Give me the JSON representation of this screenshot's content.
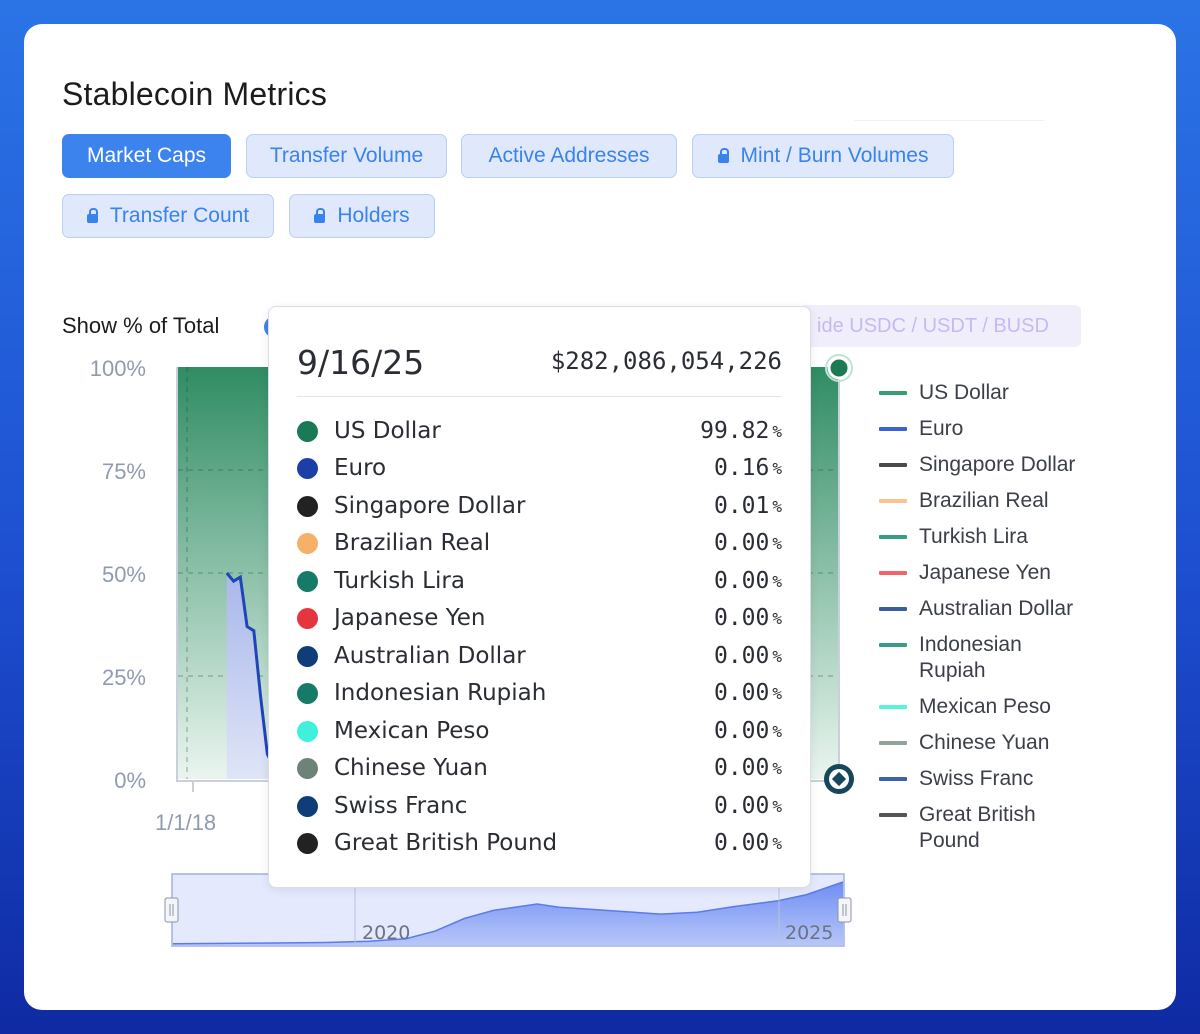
{
  "title": "Stablecoin Metrics",
  "tabs": [
    {
      "label": "Market Caps",
      "active": true,
      "locked": false
    },
    {
      "label": "Transfer Volume",
      "active": false,
      "locked": false
    },
    {
      "label": "Active Addresses",
      "active": false,
      "locked": false
    },
    {
      "label": "Mint / Burn Volumes",
      "active": false,
      "locked": true
    },
    {
      "label": "Transfer Count",
      "active": false,
      "locked": true
    },
    {
      "label": "Holders",
      "active": false,
      "locked": true
    }
  ],
  "controls": {
    "show_pct_label": "Show % of Total",
    "hide_label": "ide USDC / USDT / BUSD"
  },
  "colors": {
    "accent": "#3c83ee",
    "usd_area": "#2f8c63",
    "euro_line": "#1f45b8"
  },
  "chart_data": {
    "type": "area",
    "mode": "percent_of_total",
    "y_ticks": [
      "100%",
      "75%",
      "50%",
      "25%",
      "0%"
    ],
    "ylim": [
      0,
      100
    ],
    "x_ticks": [
      "1/1/18"
    ],
    "euro_share_series": [
      {
        "x": "2018-06",
        "y": 50
      },
      {
        "x": "2018-07",
        "y": 48
      },
      {
        "x": "2018-08",
        "y": 49
      },
      {
        "x": "2018-09",
        "y": 37
      },
      {
        "x": "2018-10",
        "y": 36
      },
      {
        "x": "2018-11",
        "y": 20
      },
      {
        "x": "2018-12",
        "y": 6
      },
      {
        "x": "2019-01",
        "y": 3
      },
      {
        "x": "2019-02",
        "y": 2
      },
      {
        "x": "2019-03",
        "y": 4
      }
    ],
    "tooltip": {
      "date": "9/16/25",
      "total": "$282,086,054,226",
      "rows": [
        {
          "name": "US Dollar",
          "value": "99.82",
          "unit": "%",
          "color": "#1a7a56"
        },
        {
          "name": "Euro",
          "value": "0.16",
          "unit": "%",
          "color": "#1b3fa6"
        },
        {
          "name": "Singapore Dollar",
          "value": "0.01",
          "unit": "%",
          "color": "#222222"
        },
        {
          "name": "Brazilian Real",
          "value": "0.00",
          "unit": "%",
          "color": "#f7b06a"
        },
        {
          "name": "Turkish Lira",
          "value": "0.00",
          "unit": "%",
          "color": "#177a68"
        },
        {
          "name": "Japanese Yen",
          "value": "0.00",
          "unit": "%",
          "color": "#e5363f"
        },
        {
          "name": "Australian Dollar",
          "value": "0.00",
          "unit": "%",
          "color": "#0f3d78"
        },
        {
          "name": "Indonesian Rupiah",
          "value": "0.00",
          "unit": "%",
          "color": "#177a68"
        },
        {
          "name": "Mexican Peso",
          "value": "0.00",
          "unit": "%",
          "color": "#3ff0dc"
        },
        {
          "name": "Chinese Yuan",
          "value": "0.00",
          "unit": "%",
          "color": "#6e8378"
        },
        {
          "name": "Swiss Franc",
          "value": "0.00",
          "unit": "%",
          "color": "#0f3d78"
        },
        {
          "name": "Great British Pound",
          "value": "0.00",
          "unit": "%",
          "color": "#222222"
        }
      ]
    },
    "legend": [
      {
        "label": "US Dollar",
        "color": "#3a9c73"
      },
      {
        "label": "Euro",
        "color": "#3b62d6"
      },
      {
        "label": "Singapore Dollar",
        "color": "#4a4a4a"
      },
      {
        "label": "Brazilian Real",
        "color": "#f9c48e"
      },
      {
        "label": "Turkish Lira",
        "color": "#3a9c86"
      },
      {
        "label": "Japanese Yen",
        "color": "#f0646a"
      },
      {
        "label": "Australian Dollar",
        "color": "#3c5f9c"
      },
      {
        "label": "Indonesian Rupiah",
        "color": "#3a9c86"
      },
      {
        "label": "Mexican Peso",
        "color": "#58f2e2"
      },
      {
        "label": "Chinese Yuan",
        "color": "#8fa59a"
      },
      {
        "label": "Swiss Franc",
        "color": "#3c62a8"
      },
      {
        "label": "Great British Pound",
        "color": "#555555"
      }
    ],
    "navigator": {
      "labels": [
        "2020",
        "2025"
      ],
      "x_start": "2018-01",
      "x_end": "2025-09",
      "series": [
        {
          "x": "2018-01",
          "y": 2
        },
        {
          "x": "2019-01",
          "y": 3
        },
        {
          "x": "2019-10",
          "y": 4
        },
        {
          "x": "2020-04",
          "y": 6
        },
        {
          "x": "2020-09",
          "y": 10
        },
        {
          "x": "2021-01",
          "y": 22
        },
        {
          "x": "2021-05",
          "y": 42
        },
        {
          "x": "2021-09",
          "y": 55
        },
        {
          "x": "2022-03",
          "y": 65
        },
        {
          "x": "2022-06",
          "y": 60
        },
        {
          "x": "2022-10",
          "y": 57
        },
        {
          "x": "2023-03",
          "y": 53
        },
        {
          "x": "2023-08",
          "y": 49
        },
        {
          "x": "2024-01",
          "y": 52
        },
        {
          "x": "2024-06",
          "y": 61
        },
        {
          "x": "2024-12",
          "y": 70
        },
        {
          "x": "2025-04",
          "y": 80
        },
        {
          "x": "2025-09",
          "y": 100
        }
      ]
    }
  }
}
